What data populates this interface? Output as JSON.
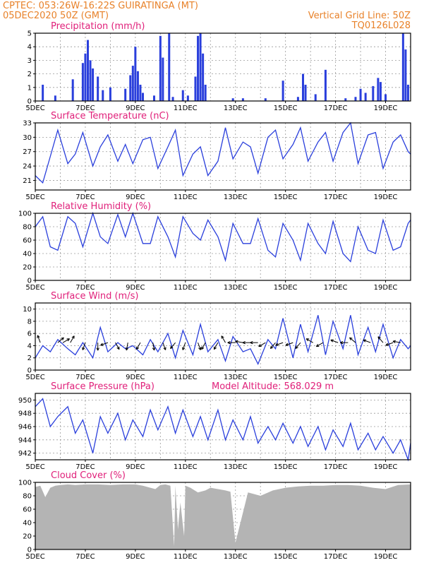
{
  "header": {
    "line1": "CPTEC:  053:26W-16:22S  GUIRATINGA (MT)",
    "line2": "05DEC2020 50Z (GMT)",
    "grid_line": "Vertical Grid Line: 50Z",
    "code": "TQ0126L028"
  },
  "colors": {
    "title": "#e0207a",
    "header": "#e8822a",
    "series": "#2a3fdc",
    "cloud": "#b4b4b4",
    "grid": "#9a9a9a"
  },
  "chart_data": [
    {
      "id": "precip",
      "type": "bar",
      "title": "Precipitation (mm/h)",
      "ylim": [
        0,
        5
      ],
      "yticks": [
        0,
        1,
        2,
        3,
        4,
        5
      ],
      "x_ticks": [
        "5DEC",
        "7DEC",
        "9DEC",
        "11DEC",
        "13DEC",
        "15DEC",
        "17DEC",
        "19DEC"
      ],
      "x_range_days": [
        5,
        20
      ],
      "grid": true,
      "bars": [
        {
          "d": 5.3,
          "v": 1.2
        },
        {
          "d": 5.8,
          "v": 0.4
        },
        {
          "d": 6.5,
          "v": 1.6
        },
        {
          "d": 6.9,
          "v": 2.8
        },
        {
          "d": 7.0,
          "v": 3.5
        },
        {
          "d": 7.1,
          "v": 4.5
        },
        {
          "d": 7.2,
          "v": 3.0
        },
        {
          "d": 7.3,
          "v": 2.4
        },
        {
          "d": 7.5,
          "v": 1.8
        },
        {
          "d": 7.7,
          "v": 0.8
        },
        {
          "d": 8.0,
          "v": 1.0
        },
        {
          "d": 8.6,
          "v": 0.9
        },
        {
          "d": 8.8,
          "v": 1.9
        },
        {
          "d": 8.9,
          "v": 2.6
        },
        {
          "d": 9.0,
          "v": 4.0
        },
        {
          "d": 9.1,
          "v": 2.2
        },
        {
          "d": 9.2,
          "v": 1.2
        },
        {
          "d": 9.3,
          "v": 0.6
        },
        {
          "d": 9.75,
          "v": 0.4
        },
        {
          "d": 10.0,
          "v": 4.8
        },
        {
          "d": 10.1,
          "v": 3.2
        },
        {
          "d": 10.35,
          "v": 5.0
        },
        {
          "d": 10.5,
          "v": 0.3
        },
        {
          "d": 10.9,
          "v": 0.8
        },
        {
          "d": 11.1,
          "v": 0.4
        },
        {
          "d": 11.4,
          "v": 1.8
        },
        {
          "d": 11.5,
          "v": 4.8
        },
        {
          "d": 11.6,
          "v": 5.0
        },
        {
          "d": 11.7,
          "v": 3.5
        },
        {
          "d": 11.8,
          "v": 1.2
        },
        {
          "d": 12.9,
          "v": 0.2
        },
        {
          "d": 13.3,
          "v": 0.2
        },
        {
          "d": 14.2,
          "v": 0.2
        },
        {
          "d": 14.9,
          "v": 1.5
        },
        {
          "d": 15.5,
          "v": 0.3
        },
        {
          "d": 15.7,
          "v": 2.0
        },
        {
          "d": 15.8,
          "v": 1.2
        },
        {
          "d": 16.2,
          "v": 0.5
        },
        {
          "d": 16.6,
          "v": 2.3
        },
        {
          "d": 17.4,
          "v": 0.2
        },
        {
          "d": 17.8,
          "v": 0.3
        },
        {
          "d": 18.0,
          "v": 0.9
        },
        {
          "d": 18.2,
          "v": 0.6
        },
        {
          "d": 18.5,
          "v": 1.1
        },
        {
          "d": 18.7,
          "v": 1.7
        },
        {
          "d": 18.8,
          "v": 1.4
        },
        {
          "d": 19.0,
          "v": 0.5
        },
        {
          "d": 19.7,
          "v": 5.0
        },
        {
          "d": 19.8,
          "v": 3.8
        },
        {
          "d": 19.9,
          "v": 1.2
        }
      ]
    },
    {
      "id": "temp",
      "type": "line",
      "title": "Surface Temperature (nC)",
      "ylim": [
        19,
        33
      ],
      "yticks": [
        21,
        24,
        27,
        30,
        33
      ],
      "x_ticks": [
        "5DEC",
        "7DEC",
        "9DEC",
        "11DEC",
        "13DEC",
        "15DEC",
        "17DEC",
        "19DEC"
      ],
      "x_range_days": [
        5,
        20
      ],
      "grid": true,
      "x": [
        5.0,
        5.3,
        5.6,
        5.9,
        6.3,
        6.6,
        6.9,
        7.3,
        7.6,
        7.9,
        8.3,
        8.6,
        8.9,
        9.3,
        9.6,
        9.9,
        10.3,
        10.6,
        10.9,
        11.3,
        11.6,
        11.9,
        12.3,
        12.6,
        12.9,
        13.3,
        13.6,
        13.9,
        14.3,
        14.6,
        14.9,
        15.3,
        15.6,
        15.9,
        16.3,
        16.6,
        16.9,
        17.3,
        17.6,
        17.9,
        18.3,
        18.6,
        18.9,
        19.3,
        19.6,
        19.9,
        20.0
      ],
      "y": [
        22.0,
        20.5,
        26.0,
        31.5,
        24.5,
        26.5,
        31.0,
        24.0,
        28.0,
        30.5,
        25.0,
        28.5,
        24.5,
        29.5,
        30.0,
        23.5,
        28.0,
        31.5,
        22.0,
        26.5,
        28.0,
        22.0,
        25.0,
        32.0,
        25.5,
        29.0,
        28.0,
        22.5,
        30.0,
        31.5,
        25.5,
        28.5,
        32.0,
        25.0,
        29.0,
        31.0,
        25.0,
        31.0,
        33.0,
        24.5,
        30.5,
        31.0,
        23.5,
        29.0,
        30.5,
        27.0,
        26.5
      ]
    },
    {
      "id": "rh",
      "type": "line",
      "title": "Relative Humidity (%)",
      "ylim": [
        0,
        100
      ],
      "yticks": [
        0,
        20,
        40,
        60,
        80,
        100
      ],
      "x_ticks": [
        "5DEC",
        "7DEC",
        "9DEC",
        "11DEC",
        "13DEC",
        "15DEC",
        "17DEC",
        "19DEC"
      ],
      "x_range_days": [
        5,
        20
      ],
      "grid": true,
      "x": [
        5.0,
        5.3,
        5.6,
        5.9,
        6.3,
        6.6,
        6.9,
        7.3,
        7.6,
        7.9,
        8.3,
        8.6,
        8.9,
        9.3,
        9.6,
        9.9,
        10.3,
        10.6,
        10.9,
        11.3,
        11.6,
        11.9,
        12.3,
        12.6,
        12.9,
        13.3,
        13.6,
        13.9,
        14.3,
        14.6,
        14.9,
        15.3,
        15.6,
        15.9,
        16.3,
        16.6,
        16.9,
        17.3,
        17.6,
        17.9,
        18.3,
        18.6,
        18.9,
        19.3,
        19.6,
        19.9,
        20.0
      ],
      "y": [
        80,
        95,
        50,
        45,
        95,
        85,
        50,
        100,
        65,
        55,
        98,
        65,
        100,
        55,
        55,
        95,
        65,
        35,
        95,
        70,
        60,
        90,
        65,
        30,
        85,
        55,
        55,
        92,
        45,
        35,
        85,
        60,
        30,
        85,
        55,
        40,
        88,
        40,
        28,
        80,
        45,
        40,
        90,
        45,
        50,
        85,
        90
      ]
    },
    {
      "id": "wind",
      "type": "line",
      "title": "Surface Wind (m/s)",
      "ylim": [
        0,
        11
      ],
      "yticks": [
        0,
        2,
        4,
        6,
        8,
        10
      ],
      "x_ticks": [
        "5DEC",
        "7DEC",
        "9DEC",
        "11DEC",
        "13DEC",
        "15DEC",
        "17DEC",
        "19DEC"
      ],
      "x_range_days": [
        5,
        20
      ],
      "grid": true,
      "x": [
        5.0,
        5.3,
        5.6,
        5.9,
        6.3,
        6.6,
        6.9,
        7.3,
        7.6,
        7.9,
        8.3,
        8.6,
        8.9,
        9.3,
        9.6,
        9.9,
        10.3,
        10.6,
        10.9,
        11.3,
        11.6,
        11.9,
        12.3,
        12.6,
        12.9,
        13.3,
        13.6,
        13.9,
        14.3,
        14.6,
        14.9,
        15.3,
        15.6,
        15.9,
        16.3,
        16.6,
        16.9,
        17.3,
        17.6,
        17.9,
        18.3,
        18.6,
        18.9,
        19.3,
        19.6,
        19.9,
        20.0
      ],
      "y": [
        2.0,
        4.0,
        3.0,
        5.0,
        3.5,
        2.5,
        4.5,
        2.0,
        7.0,
        3.0,
        4.5,
        3.5,
        4.0,
        2.5,
        5.0,
        3.0,
        6.0,
        2.0,
        6.5,
        2.5,
        7.5,
        3.0,
        5.0,
        1.5,
        5.5,
        3.0,
        3.5,
        1.0,
        5.0,
        3.5,
        8.5,
        2.0,
        7.5,
        3.0,
        9.0,
        2.5,
        8.0,
        3.5,
        9.0,
        2.5,
        7.0,
        3.0,
        7.5,
        2.0,
        5.0,
        3.5,
        4.0
      ],
      "arrows": [
        {
          "d": 5.2,
          "a": 110
        },
        {
          "d": 5.9,
          "a": 40
        },
        {
          "d": 6.1,
          "a": 30
        },
        {
          "d": 6.4,
          "a": 60
        },
        {
          "d": 7.0,
          "a": 250
        },
        {
          "d": 7.5,
          "a": 270
        },
        {
          "d": 7.9,
          "a": 200
        },
        {
          "d": 8.2,
          "a": 300
        },
        {
          "d": 8.7,
          "a": 260
        },
        {
          "d": 9.2,
          "a": 240
        },
        {
          "d": 9.7,
          "a": 280
        },
        {
          "d": 10.1,
          "a": 290
        },
        {
          "d": 10.6,
          "a": 230
        },
        {
          "d": 11.0,
          "a": 250
        },
        {
          "d": 11.5,
          "a": 290
        },
        {
          "d": 11.8,
          "a": 240
        },
        {
          "d": 12.3,
          "a": 240
        },
        {
          "d": 12.6,
          "a": 120
        },
        {
          "d": 13.0,
          "a": 180
        },
        {
          "d": 13.3,
          "a": 170
        },
        {
          "d": 13.6,
          "a": 180
        },
        {
          "d": 13.9,
          "a": 180
        },
        {
          "d": 14.2,
          "a": 210
        },
        {
          "d": 14.6,
          "a": 230
        },
        {
          "d": 14.9,
          "a": 200
        },
        {
          "d": 15.3,
          "a": 200
        },
        {
          "d": 15.6,
          "a": 230
        },
        {
          "d": 16.1,
          "a": 150
        },
        {
          "d": 16.5,
          "a": 210
        },
        {
          "d": 17.1,
          "a": 160
        },
        {
          "d": 17.5,
          "a": 180
        },
        {
          "d": 17.8,
          "a": 140
        },
        {
          "d": 18.4,
          "a": 160
        },
        {
          "d": 18.9,
          "a": 130
        },
        {
          "d": 19.3,
          "a": 200
        },
        {
          "d": 19.6,
          "a": 170
        }
      ]
    },
    {
      "id": "press",
      "type": "line",
      "title": "Surface Pressure (hPa)",
      "annotation": "Model Altitude: 568.029 m",
      "ylim": [
        941,
        951
      ],
      "yticks": [
        942,
        944,
        946,
        948,
        950
      ],
      "x_ticks": [
        "5DEC",
        "7DEC",
        "9DEC",
        "11DEC",
        "13DEC",
        "15DEC",
        "17DEC",
        "19DEC"
      ],
      "x_range_days": [
        5,
        20
      ],
      "grid": true,
      "x": [
        5.0,
        5.3,
        5.6,
        5.9,
        6.3,
        6.6,
        6.9,
        7.3,
        7.6,
        7.9,
        8.3,
        8.6,
        8.9,
        9.3,
        9.6,
        9.9,
        10.3,
        10.6,
        10.9,
        11.3,
        11.6,
        11.9,
        12.3,
        12.6,
        12.9,
        13.3,
        13.6,
        13.9,
        14.3,
        14.6,
        14.9,
        15.3,
        15.6,
        15.9,
        16.3,
        16.6,
        16.9,
        17.3,
        17.6,
        17.9,
        18.3,
        18.6,
        18.9,
        19.3,
        19.6,
        19.9,
        20.0
      ],
      "y": [
        949.0,
        950.2,
        946.0,
        947.5,
        949.0,
        945.0,
        947.0,
        942.0,
        947.5,
        945.0,
        948.0,
        944.0,
        947.0,
        944.5,
        948.5,
        945.5,
        949.0,
        945.0,
        948.5,
        944.5,
        947.5,
        944.0,
        948.5,
        944.0,
        947.0,
        944.0,
        947.5,
        943.5,
        946.0,
        944.0,
        946.5,
        943.5,
        946.0,
        943.0,
        946.0,
        942.5,
        945.5,
        943.0,
        946.5,
        942.5,
        945.0,
        942.5,
        944.5,
        942.0,
        944.0,
        941.0,
        943.5
      ]
    },
    {
      "id": "cloud",
      "type": "area",
      "title": "Cloud Cover (%)",
      "ylim": [
        0,
        100
      ],
      "yticks": [
        0,
        20,
        40,
        60,
        80,
        100
      ],
      "x_ticks": [
        "5DEC",
        "7DEC",
        "9DEC",
        "11DEC",
        "13DEC",
        "15DEC",
        "17DEC",
        "19DEC"
      ],
      "x_range_days": [
        5,
        20
      ],
      "grid": true,
      "x": [
        5.0,
        5.2,
        5.4,
        5.6,
        5.8,
        6.0,
        6.3,
        6.6,
        7.0,
        7.5,
        8.0,
        8.5,
        9.0,
        9.3,
        9.6,
        9.8,
        10.0,
        10.2,
        10.4,
        10.55,
        10.6,
        10.7,
        10.8,
        10.95,
        11.0,
        11.2,
        11.5,
        11.8,
        12.0,
        12.3,
        12.6,
        12.8,
        13.0,
        13.5,
        14.0,
        14.5,
        15.0,
        15.5,
        16.0,
        16.5,
        17.0,
        17.5,
        18.0,
        18.5,
        19.0,
        19.5,
        20.0
      ],
      "y": [
        93,
        95,
        78,
        92,
        95,
        96,
        97,
        96,
        97,
        97,
        96,
        97,
        97,
        95,
        92,
        90,
        96,
        97,
        95,
        5,
        95,
        30,
        70,
        20,
        95,
        92,
        85,
        88,
        92,
        90,
        88,
        86,
        10,
        85,
        80,
        88,
        92,
        94,
        95,
        95,
        96,
        96,
        95,
        92,
        90,
        96,
        97
      ]
    }
  ]
}
